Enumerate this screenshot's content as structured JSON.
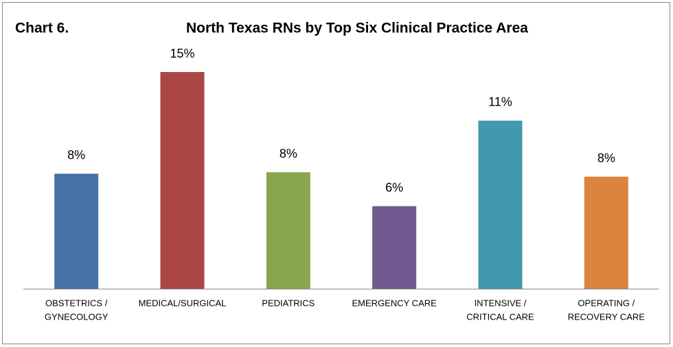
{
  "chart_data": {
    "type": "bar",
    "label": "Chart 6.",
    "title": "North Texas RNs by Top Six Clinical Practice Area",
    "categories": [
      [
        "OBSTETRICS /",
        "GYNECOLOGY"
      ],
      [
        "MEDICAL/SURGICAL"
      ],
      [
        "PEDIATRICS"
      ],
      [
        "EMERGENCY CARE"
      ],
      [
        "INTENSIVE /",
        "CRITICAL CARE"
      ],
      [
        "OPERATING /",
        "RECOVERY CARE"
      ]
    ],
    "values": [
      7.8,
      14.7,
      7.9,
      5.6,
      11.4,
      7.6
    ],
    "value_labels": [
      "8%",
      "15%",
      "8%",
      "6%",
      "11%",
      "8%"
    ],
    "colors": [
      "#4572a7",
      "#aa4643",
      "#89a54e",
      "#71588f",
      "#4198af",
      "#db843d"
    ]
  }
}
